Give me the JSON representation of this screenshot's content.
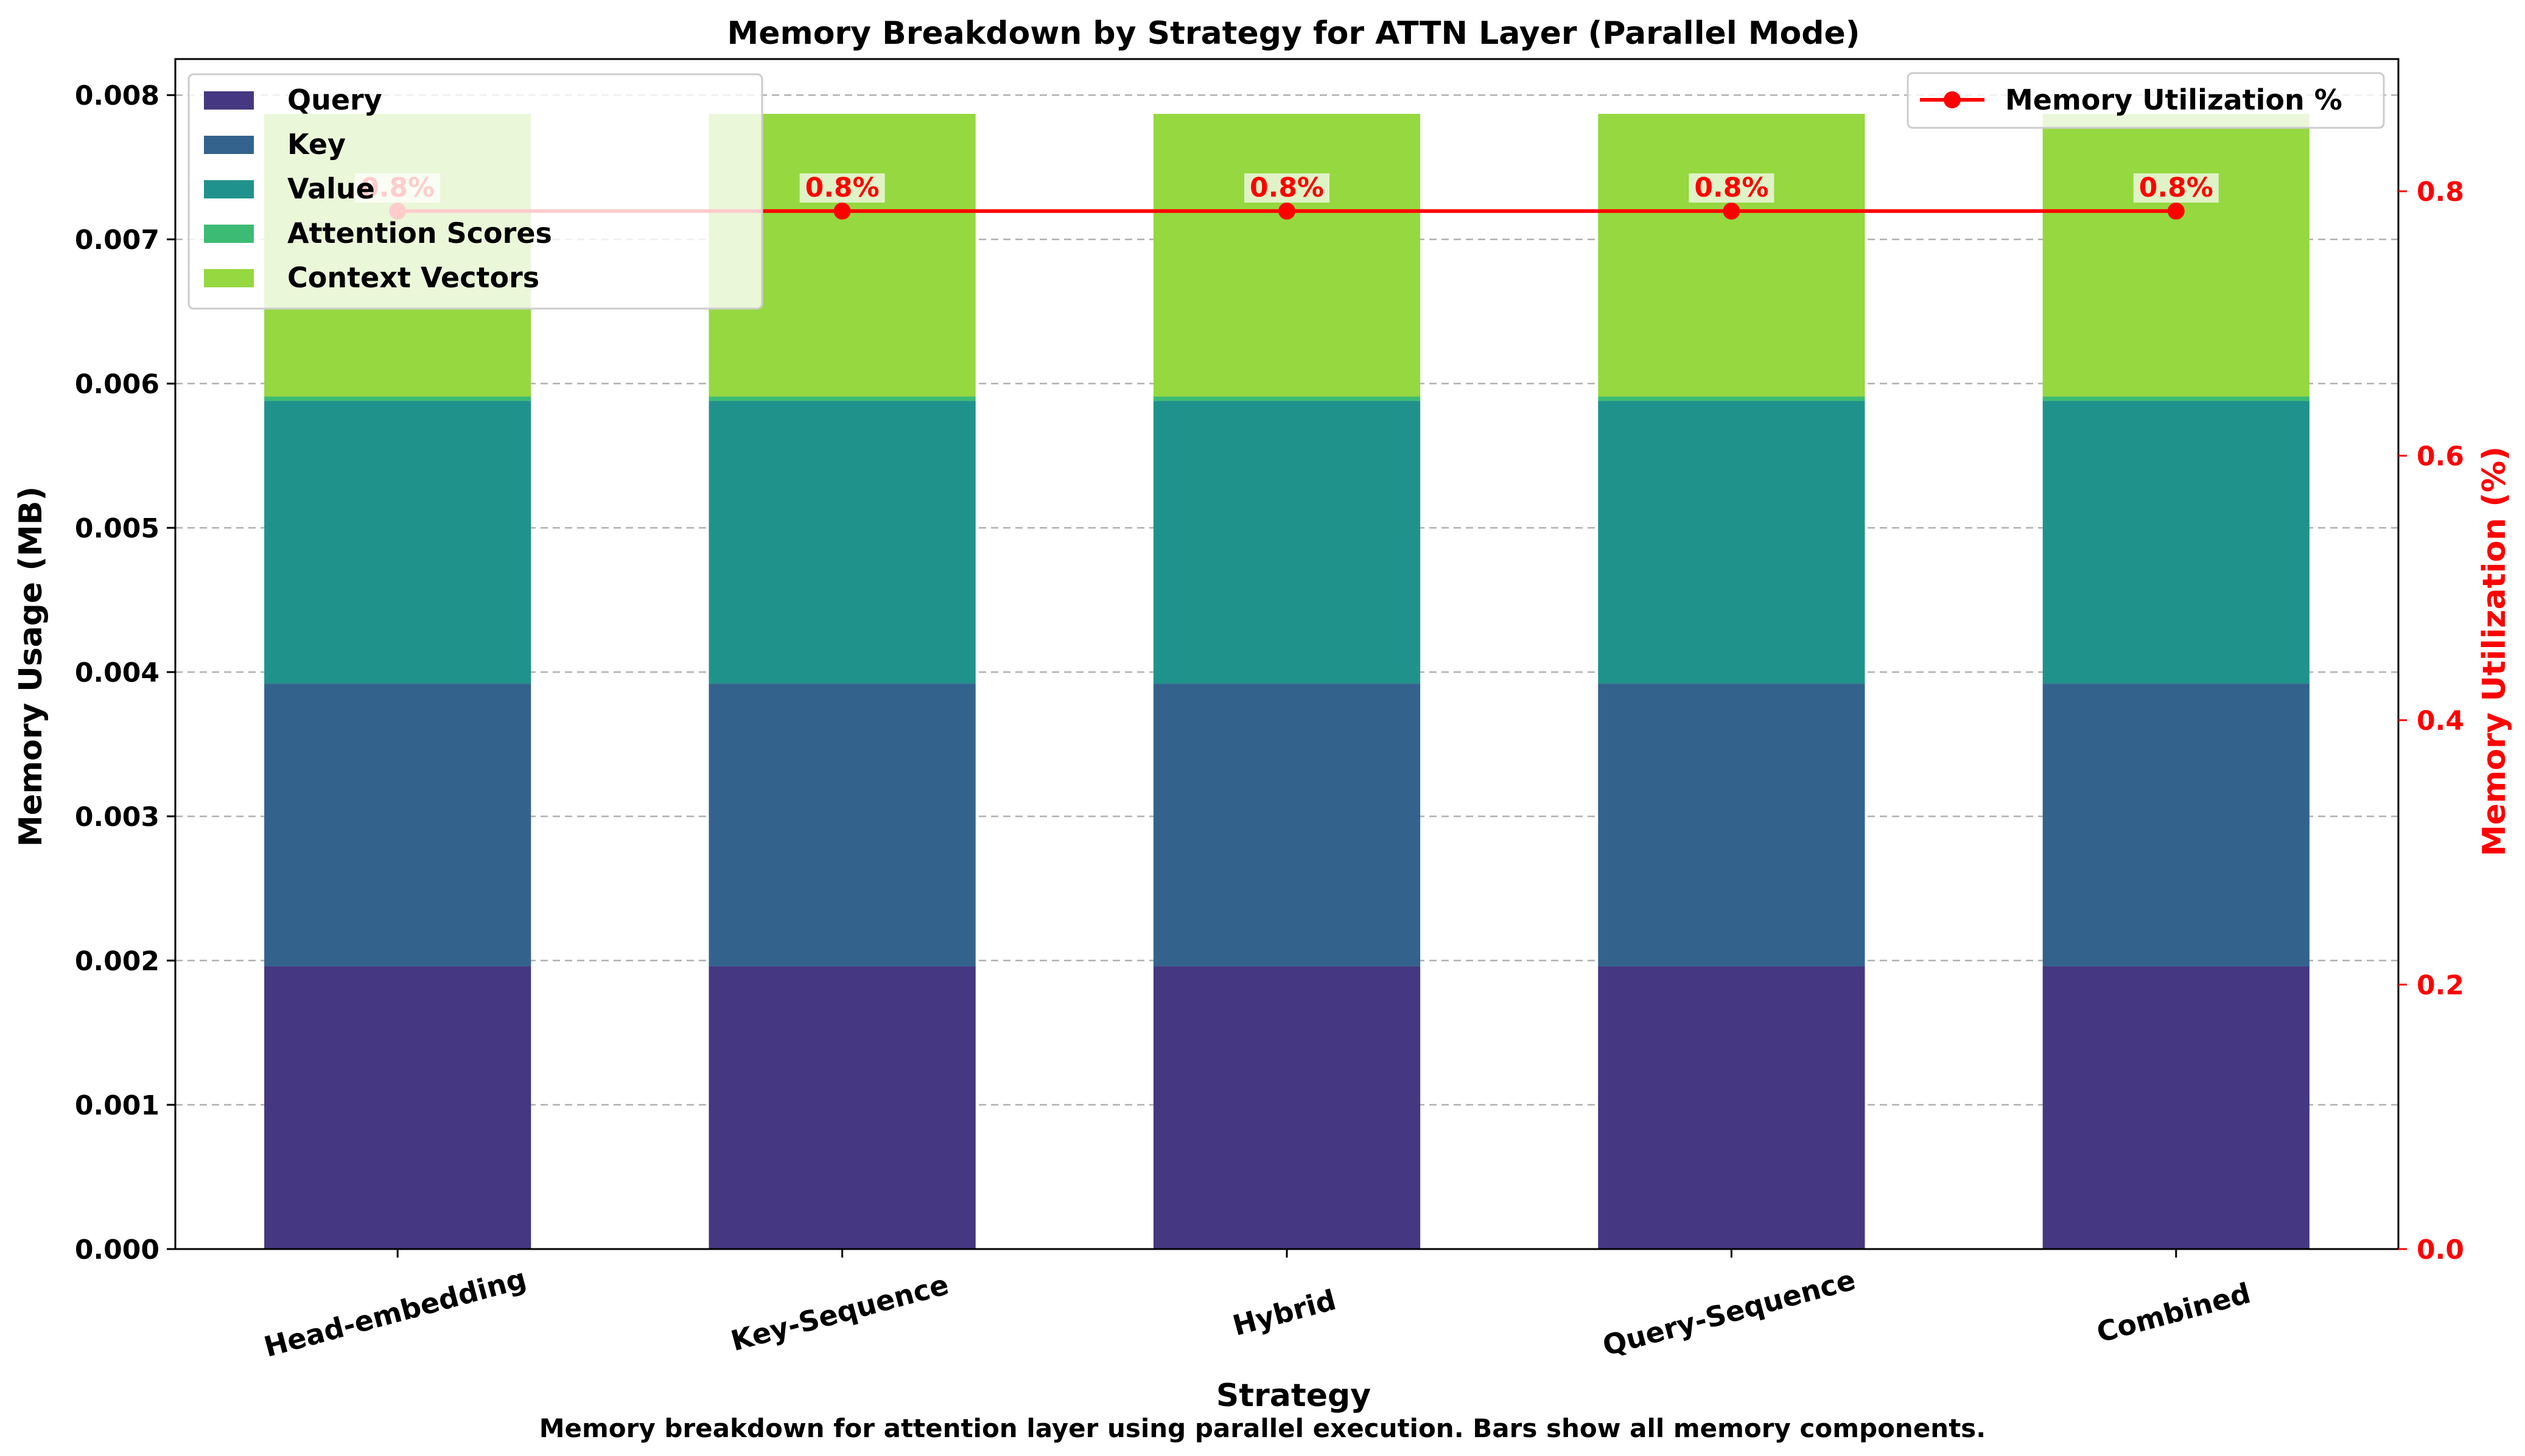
{
  "chart_data": {
    "type": "bar",
    "stacked": true,
    "title": "Memory Breakdown by Strategy for ATTN Layer (Parallel Mode)",
    "xlabel": "Strategy",
    "ylabel": "Memory Usage (MB)",
    "ylabel_right": "Memory Utilization (%)",
    "caption": "Memory breakdown for attention layer using parallel execution. Bars show all memory components.",
    "categories": [
      "Head-embedding",
      "Key-Sequence",
      "Hybrid",
      "Query-Sequence",
      "Combined"
    ],
    "ylim": [
      0,
      0.00825
    ],
    "yticks": [
      0.0,
      0.001,
      0.002,
      0.003,
      0.004,
      0.005,
      0.006,
      0.007,
      0.008
    ],
    "ytick_labels": [
      "0.000",
      "0.001",
      "0.002",
      "0.003",
      "0.004",
      "0.005",
      "0.006",
      "0.007",
      "0.008"
    ],
    "ylim_right": [
      0,
      0.9
    ],
    "yticks_right": [
      0.0,
      0.2,
      0.4,
      0.6,
      0.8
    ],
    "ytick_labels_right": [
      "0.0",
      "0.2",
      "0.4",
      "0.6",
      "0.8"
    ],
    "grid": "y-dashed",
    "series": [
      {
        "name": "Query",
        "color": "#453781",
        "values": [
          0.00196,
          0.00196,
          0.00196,
          0.00196,
          0.00196
        ]
      },
      {
        "name": "Key",
        "color": "#33638d",
        "values": [
          0.00196,
          0.00196,
          0.00196,
          0.00196,
          0.00196
        ]
      },
      {
        "name": "Value",
        "color": "#20928c",
        "values": [
          0.00196,
          0.00196,
          0.00196,
          0.00196,
          0.00196
        ]
      },
      {
        "name": "Attention Scores",
        "color": "#3cbb75",
        "values": [
          3e-05,
          3e-05,
          3e-05,
          3e-05,
          3e-05
        ]
      },
      {
        "name": "Context Vectors",
        "color": "#95d840",
        "values": [
          0.00196,
          0.00196,
          0.00196,
          0.00196,
          0.00196
        ]
      }
    ],
    "line_series": {
      "name": "Memory Utilization %",
      "color": "#ff0000",
      "axis": "right",
      "values": [
        0.785,
        0.785,
        0.785,
        0.785,
        0.785
      ],
      "labels": [
        "0.8%",
        "0.8%",
        "0.8%",
        "0.8%",
        "0.8%"
      ]
    },
    "legend_left": "upper-left",
    "legend_right": "upper-right"
  }
}
